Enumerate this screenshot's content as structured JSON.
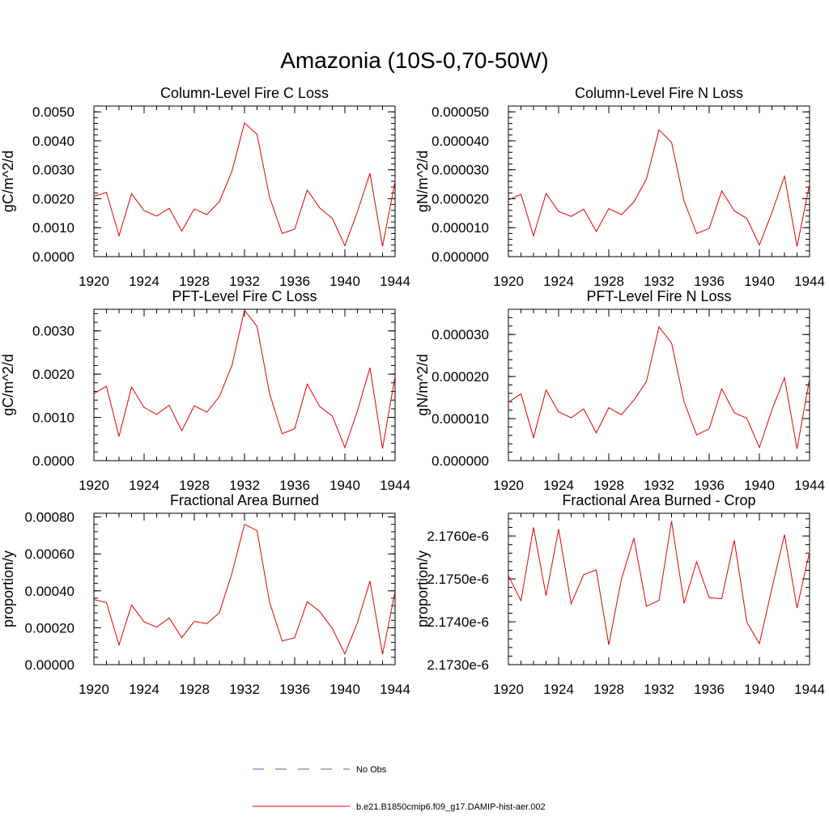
{
  "page": {
    "title": "Amazonia (10S-0,70-50W)"
  },
  "legend": {
    "items": [
      {
        "label": "No Obs",
        "color": "#5a5ab0",
        "style": "dashed"
      },
      {
        "label": "b.e21.B1850cmip6.f09_g17.DAMIP-hist-aer.002",
        "color": "#e00000",
        "style": "solid"
      }
    ]
  },
  "chart_data": [
    {
      "type": "line",
      "title": "Column-Level Fire C Loss",
      "ylabel": "gC/m^2/d",
      "xlim": [
        1920,
        1944
      ],
      "ylim": [
        0,
        0.0052
      ],
      "xticks": [
        1920,
        1924,
        1928,
        1932,
        1936,
        1940,
        1944
      ],
      "yticks": [
        0,
        0.001,
        0.002,
        0.003,
        0.004,
        0.005
      ],
      "ytick_labels": [
        "0.0000",
        "0.0010",
        "0.0020",
        "0.0030",
        "0.0040",
        "0.0050"
      ],
      "x": [
        1920,
        1921,
        1922,
        1923,
        1924,
        1925,
        1926,
        1927,
        1928,
        1929,
        1930,
        1931,
        1932,
        1933,
        1934,
        1935,
        1936,
        1937,
        1938,
        1939,
        1940,
        1941,
        1942,
        1943,
        1944
      ],
      "series": [
        {
          "color": "#e00000",
          "values": [
            0.00208,
            0.00222,
            0.00072,
            0.00217,
            0.00159,
            0.0014,
            0.00167,
            0.00088,
            0.00165,
            0.00145,
            0.0019,
            0.00295,
            0.00462,
            0.00422,
            0.00205,
            0.0008,
            0.00095,
            0.0023,
            0.00168,
            0.00132,
            0.00038,
            0.00155,
            0.00288,
            0.00035,
            0.0026
          ]
        }
      ]
    },
    {
      "type": "line",
      "title": "Column-Level Fire N Loss",
      "ylabel": "gN/m^2/d",
      "xlim": [
        1920,
        1944
      ],
      "ylim": [
        0,
        5.2e-05
      ],
      "xticks": [
        1920,
        1924,
        1928,
        1932,
        1936,
        1940,
        1944
      ],
      "yticks": [
        0,
        1e-05,
        2e-05,
        3e-05,
        4e-05,
        5e-05
      ],
      "ytick_labels": [
        "0.000000",
        "0.000010",
        "0.000020",
        "0.000030",
        "0.000040",
        "0.000050"
      ],
      "x": [
        1920,
        1921,
        1922,
        1923,
        1924,
        1925,
        1926,
        1927,
        1928,
        1929,
        1930,
        1931,
        1932,
        1933,
        1934,
        1935,
        1936,
        1937,
        1938,
        1939,
        1940,
        1941,
        1942,
        1943,
        1944
      ],
      "series": [
        {
          "color": "#e00000",
          "values": [
            1.96e-05,
            2.15e-05,
            7.2e-06,
            2.18e-05,
            1.56e-05,
            1.39e-05,
            1.64e-05,
            8.7e-06,
            1.66e-05,
            1.45e-05,
            1.89e-05,
            2.68e-05,
            4.38e-05,
            3.95e-05,
            1.92e-05,
            8e-06,
            9.7e-06,
            2.27e-05,
            1.58e-05,
            1.32e-05,
            4e-06,
            1.52e-05,
            2.78e-05,
            3.5e-06,
            2.5e-05
          ]
        }
      ]
    },
    {
      "type": "line",
      "title": "PFT-Level Fire C Loss",
      "ylabel": "gC/m^2/d",
      "xlim": [
        1920,
        1944
      ],
      "ylim": [
        0,
        0.0035
      ],
      "xticks": [
        1920,
        1924,
        1928,
        1932,
        1936,
        1940,
        1944
      ],
      "yticks": [
        0,
        0.001,
        0.002,
        0.003
      ],
      "ytick_labels": [
        "0.0000",
        "0.0010",
        "0.0020",
        "0.0030"
      ],
      "x": [
        1920,
        1921,
        1922,
        1923,
        1924,
        1925,
        1926,
        1927,
        1928,
        1929,
        1930,
        1931,
        1932,
        1933,
        1934,
        1935,
        1936,
        1937,
        1938,
        1939,
        1940,
        1941,
        1942,
        1943,
        1944
      ],
      "series": [
        {
          "color": "#e00000",
          "values": [
            0.00155,
            0.00172,
            0.00056,
            0.0017,
            0.00123,
            0.00107,
            0.00128,
            0.00069,
            0.00127,
            0.00112,
            0.00148,
            0.0022,
            0.00348,
            0.0031,
            0.00155,
            0.00062,
            0.00074,
            0.00177,
            0.00125,
            0.00103,
            0.0003,
            0.00115,
            0.00215,
            0.00028,
            0.00195
          ]
        }
      ]
    },
    {
      "type": "line",
      "title": "PFT-Level Fire N Loss",
      "ylabel": "gN/m^2/d",
      "xlim": [
        1920,
        1944
      ],
      "ylim": [
        0,
        3.6e-05
      ],
      "xticks": [
        1920,
        1924,
        1928,
        1932,
        1936,
        1940,
        1944
      ],
      "yticks": [
        0,
        1e-05,
        2e-05,
        3e-05
      ],
      "ytick_labels": [
        "0.000000",
        "0.000010",
        "0.000020",
        "0.000030"
      ],
      "x": [
        1920,
        1921,
        1922,
        1923,
        1924,
        1925,
        1926,
        1927,
        1928,
        1929,
        1930,
        1931,
        1932,
        1933,
        1934,
        1935,
        1936,
        1937,
        1938,
        1939,
        1940,
        1941,
        1942,
        1943,
        1944
      ],
      "series": [
        {
          "color": "#e00000",
          "values": [
            1.39e-05,
            1.59e-05,
            5.5e-06,
            1.68e-05,
            1.16e-05,
            1.02e-05,
            1.23e-05,
            6.6e-06,
            1.26e-05,
            1.09e-05,
            1.44e-05,
            1.88e-05,
            3.18e-05,
            2.8e-05,
            1.4e-05,
            6.1e-06,
            7.6e-06,
            1.71e-05,
            1.14e-05,
            1.01e-05,
            3.1e-06,
            1.21e-05,
            1.97e-05,
            2.8e-06,
            1.95e-05
          ]
        }
      ]
    },
    {
      "type": "line",
      "title": "Fractional Area Burned",
      "ylabel": "proportion/y",
      "xlim": [
        1920,
        1944
      ],
      "ylim": [
        0,
        0.00082
      ],
      "xticks": [
        1920,
        1924,
        1928,
        1932,
        1936,
        1940,
        1944
      ],
      "yticks": [
        0,
        0.0002,
        0.0004,
        0.0006,
        0.0008
      ],
      "ytick_labels": [
        "0.00000",
        "0.00020",
        "0.00040",
        "0.00060",
        "0.00080"
      ],
      "x": [
        1920,
        1921,
        1922,
        1923,
        1924,
        1925,
        1926,
        1927,
        1928,
        1929,
        1930,
        1931,
        1932,
        1933,
        1934,
        1935,
        1936,
        1937,
        1938,
        1939,
        1940,
        1941,
        1942,
        1943,
        1944
      ],
      "series": [
        {
          "color": "#e00000",
          "values": [
            0.000352,
            0.000337,
            0.000107,
            0.000323,
            0.000232,
            0.000203,
            0.000253,
            0.000146,
            0.000235,
            0.000222,
            0.000282,
            0.000495,
            0.00076,
            0.000726,
            0.000338,
            0.000128,
            0.000146,
            0.000341,
            0.000288,
            0.000196,
            5.8e-05,
            0.000227,
            0.000453,
            5.5e-05,
            0.000397
          ]
        }
      ]
    },
    {
      "type": "line",
      "title": "Fractional Area Burned - Crop",
      "ylabel": "proportion/y",
      "xlim": [
        1920,
        1944
      ],
      "ylim": [
        2.173e-06,
        2.17653e-06
      ],
      "xticks": [
        1920,
        1924,
        1928,
        1932,
        1936,
        1940,
        1944
      ],
      "yticks": [
        2.173e-06,
        2.174e-06,
        2.175e-06,
        2.176e-06
      ],
      "ytick_labels": [
        "2.1730e-6",
        "2.1740e-6",
        "2.1750e-6",
        "2.1760e-6"
      ],
      "x": [
        1920,
        1921,
        1922,
        1923,
        1924,
        1925,
        1926,
        1927,
        1928,
        1929,
        1930,
        1931,
        1932,
        1933,
        1934,
        1935,
        1936,
        1937,
        1938,
        1939,
        1940,
        1941,
        1942,
        1943,
        1944
      ],
      "series": [
        {
          "color": "#e00000",
          "values": [
            2.17507e-06,
            2.17449e-06,
            2.1762e-06,
            2.17461e-06,
            2.17616e-06,
            2.17442e-06,
            2.1751e-06,
            2.17521e-06,
            2.17346e-06,
            2.17499e-06,
            2.17595e-06,
            2.17436e-06,
            2.1745e-06,
            2.17635e-06,
            2.17443e-06,
            2.1754e-06,
            2.17456e-06,
            2.17454e-06,
            2.1759e-06,
            2.17399e-06,
            2.17349e-06,
            2.17478e-06,
            2.17603e-06,
            2.17432e-06,
            2.17563e-06
          ]
        }
      ]
    }
  ]
}
